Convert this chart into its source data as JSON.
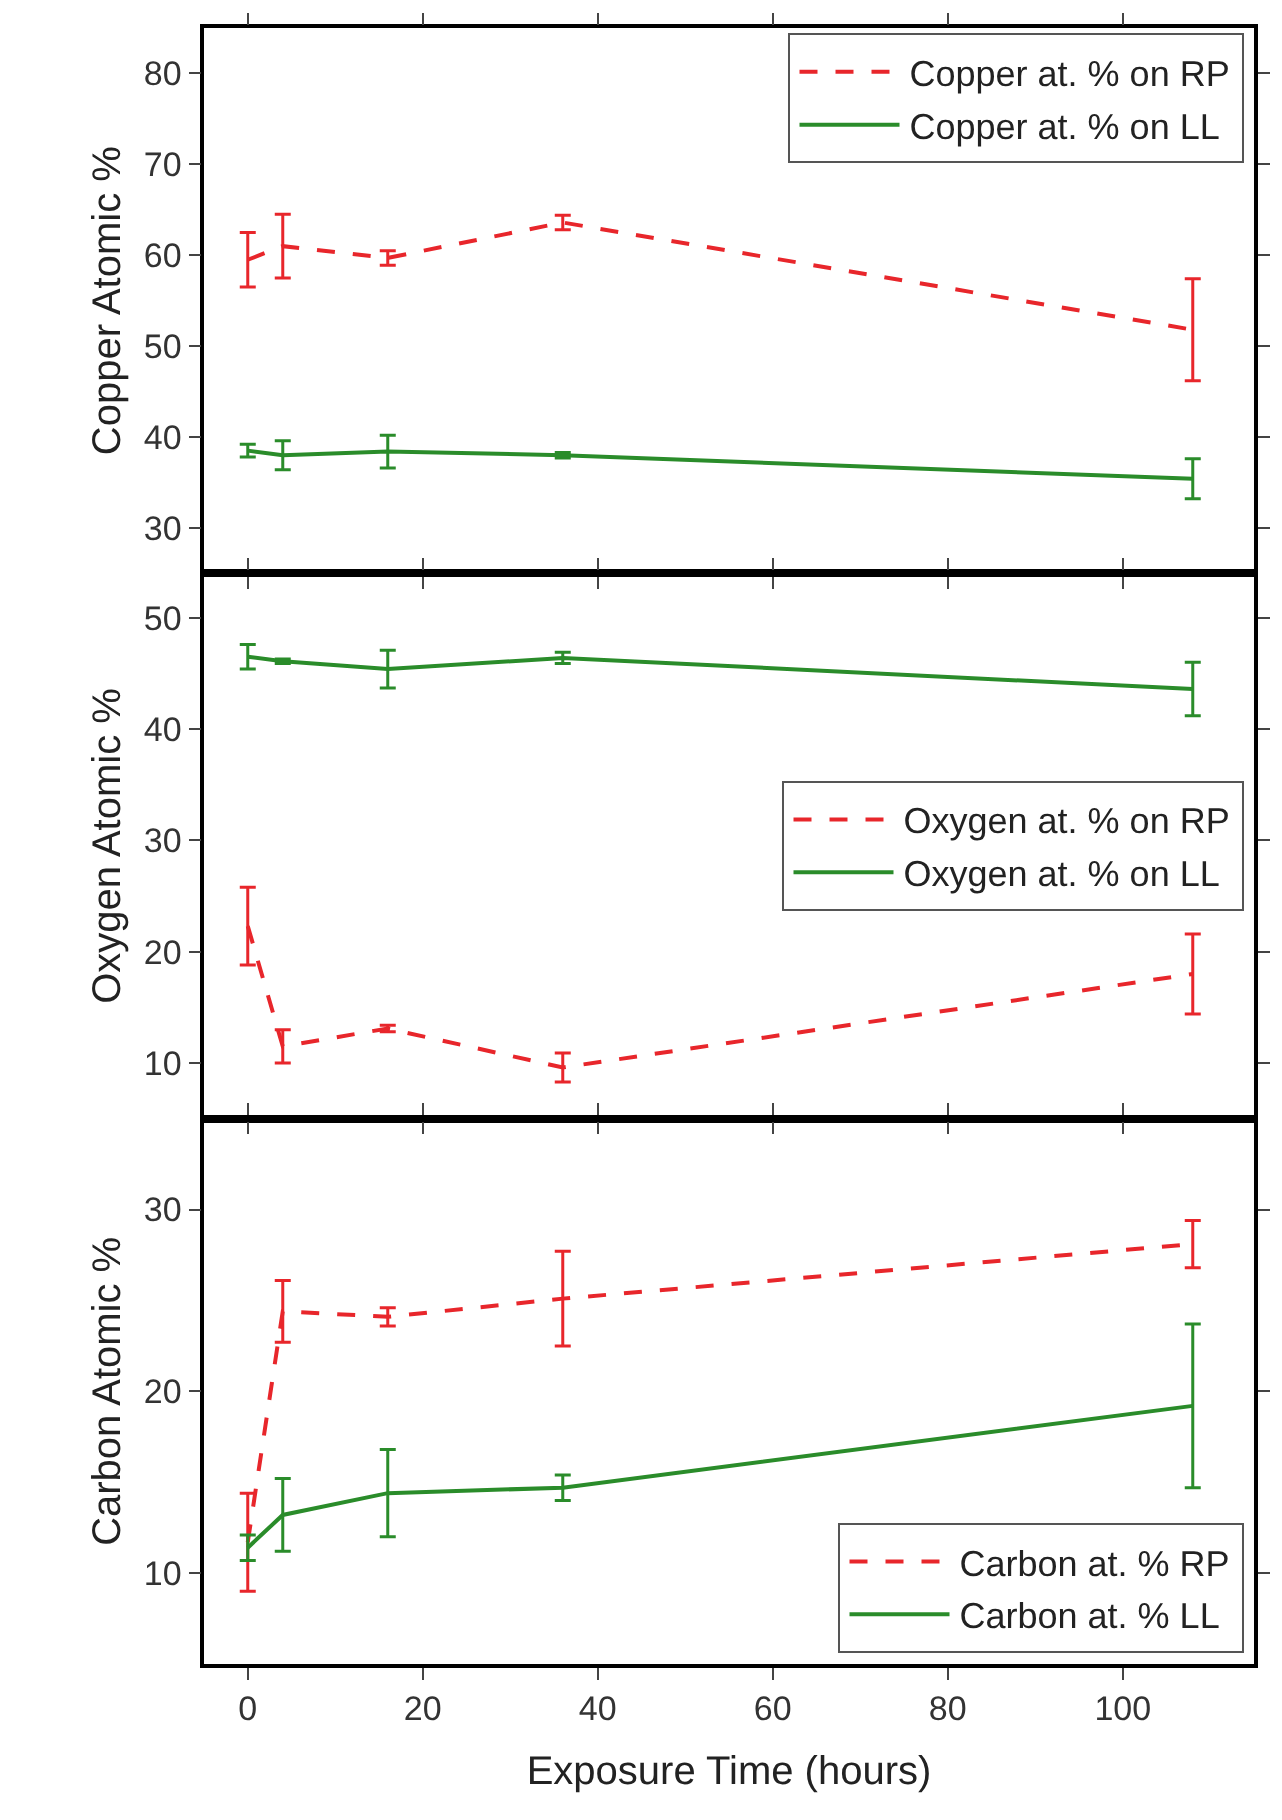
{
  "chart_data": [
    {
      "type": "line",
      "ylabel": "Copper Atomic %",
      "x": [
        0,
        4,
        16,
        36,
        108
      ],
      "xlim": [
        -5,
        115
      ],
      "xticks": [
        0,
        20,
        40,
        60,
        80,
        100
      ],
      "ylim": [
        25,
        85
      ],
      "yticks": [
        30,
        40,
        50,
        60,
        70,
        80
      ],
      "tick_labels": "y",
      "legend": "top right",
      "grid": false,
      "marker": "none",
      "series": [
        {
          "name": "Copper at. % on RP",
          "color": "#e8262b",
          "line_style": "dashed",
          "values": [
            59.5,
            61,
            59.7,
            63.6,
            51.8
          ],
          "errors": [
            3.0,
            3.5,
            0.8,
            0.8,
            5.6
          ]
        },
        {
          "name": "Copper at. % on LL",
          "color": "#2a8c2a",
          "line_style": "solid",
          "values": [
            38.5,
            38,
            38.4,
            38,
            35.4
          ],
          "errors": [
            0.7,
            1.6,
            1.8,
            0.3,
            2.2
          ]
        }
      ]
    },
    {
      "type": "line",
      "ylabel": "Oxygen Atomic %",
      "x": [
        0,
        4,
        16,
        36,
        108
      ],
      "xlim": [
        -5,
        115
      ],
      "xticks": [
        0,
        20,
        40,
        60,
        80,
        100
      ],
      "ylim": [
        5,
        54
      ],
      "yticks": [
        10,
        20,
        30,
        40,
        50
      ],
      "tick_labels": "y",
      "legend": "right",
      "grid": false,
      "marker": "none",
      "series": [
        {
          "name": "Oxygen at. % on RP",
          "color": "#e8262b",
          "line_style": "dashed",
          "values": [
            22.3,
            11.5,
            13.1,
            9.6,
            18
          ],
          "errors": [
            3.5,
            1.5,
            0.3,
            1.3,
            3.6
          ]
        },
        {
          "name": "Oxygen at. % on LL",
          "color": "#2a8c2a",
          "line_style": "solid",
          "values": [
            46.5,
            46.1,
            45.4,
            46.4,
            43.6
          ],
          "errors": [
            1.1,
            0.2,
            1.7,
            0.5,
            2.4
          ]
        }
      ]
    },
    {
      "type": "line",
      "xlabel": "Exposure Time (hours)",
      "ylabel": "Carbon Atomic %",
      "x": [
        0,
        4,
        16,
        36,
        108
      ],
      "xlim": [
        -5,
        115
      ],
      "xticks": [
        0,
        20,
        40,
        60,
        80,
        100
      ],
      "ylim": [
        5,
        35
      ],
      "yticks": [
        10,
        20,
        30
      ],
      "legend": "bottom right",
      "grid": false,
      "marker": "none",
      "series": [
        {
          "name": "Carbon at. % RP",
          "color": "#e8262b",
          "line_style": "dashed",
          "values": [
            11.7,
            24.4,
            24.1,
            25.1,
            28.1
          ],
          "errors": [
            2.7,
            1.7,
            0.5,
            2.6,
            1.3
          ]
        },
        {
          "name": "Carbon at. % LL",
          "color": "#2a8c2a",
          "line_style": "solid",
          "values": [
            11.4,
            13.2,
            14.4,
            14.7,
            19.2
          ],
          "errors": [
            0.7,
            2.0,
            2.4,
            0.7,
            4.5
          ]
        }
      ]
    }
  ]
}
